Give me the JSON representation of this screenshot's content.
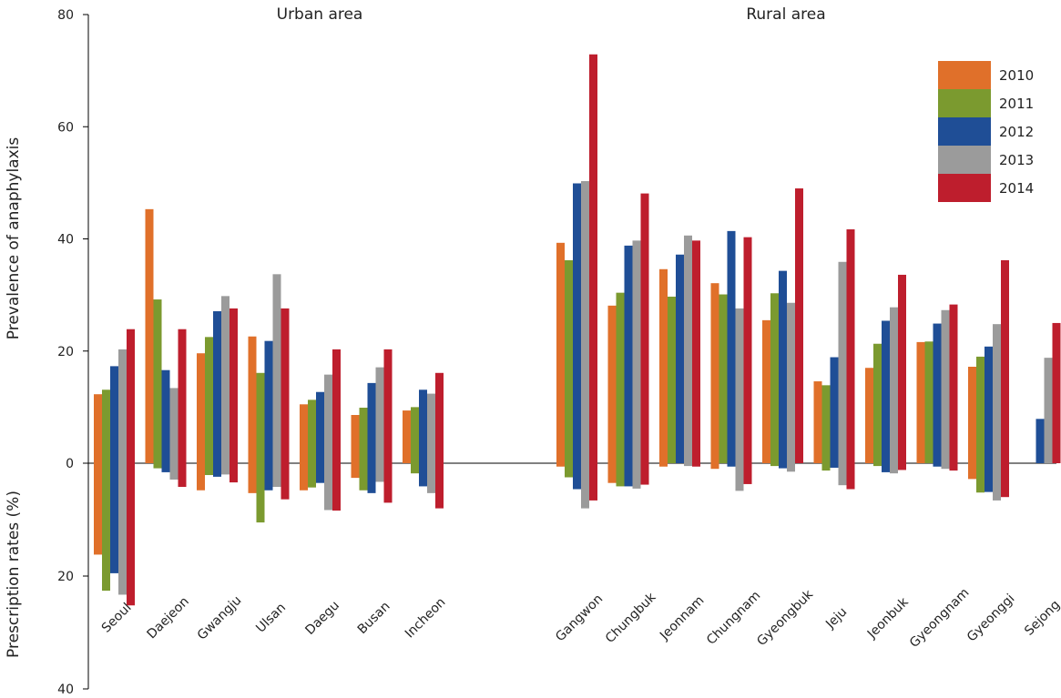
{
  "chart_data": {
    "type": "bar",
    "y_axis_top_label": "Prevalence of anaphylaxis",
    "y_axis_bottom_label": "Prescription rates (%)",
    "y_ticks_top": [
      0,
      20,
      40,
      60,
      80
    ],
    "y_ticks_bottom": [
      20,
      40
    ],
    "ylim_top": [
      0,
      80
    ],
    "ylim_bottom": [
      0,
      40
    ],
    "legend_position": "top-right",
    "groups": [
      {
        "label": "Urban area",
        "categories": [
          "Seoul",
          "Daejeon",
          "Gwangju",
          "Ulsan",
          "Daegu",
          "Busan",
          "Incheon"
        ]
      },
      {
        "label": "Rural area",
        "categories": [
          "Gangwon",
          "Chungbuk",
          "Jeonnam",
          "Chungnam",
          "Gyeongbuk",
          "Jeju",
          "Jeonbuk",
          "Gyeongnam",
          "Gyeonggi",
          "Sejong"
        ]
      }
    ],
    "series": [
      {
        "name": "2010",
        "color": "#E0702A",
        "prevalence": [
          12.3,
          45.3,
          19.6,
          22.6,
          10.5,
          8.6,
          9.4,
          39.3,
          28.1,
          34.6,
          32.1,
          25.5,
          14.6,
          17.0,
          21.6,
          17.2,
          null
        ],
        "prescription": [
          16.2,
          0.0,
          4.8,
          5.3,
          4.8,
          2.6,
          0.0,
          0.6,
          3.5,
          0.6,
          1.0,
          0.0,
          0.0,
          0.0,
          0.0,
          2.8,
          null
        ]
      },
      {
        "name": "2011",
        "color": "#7B9A2F",
        "prevalence": [
          13.1,
          29.2,
          22.5,
          16.1,
          11.3,
          9.9,
          10.0,
          36.2,
          30.4,
          29.7,
          30.1,
          30.3,
          13.9,
          21.3,
          21.7,
          19.0,
          null
        ],
        "prescription": [
          22.6,
          0.9,
          2.1,
          10.5,
          4.3,
          4.8,
          1.8,
          2.5,
          4.1,
          0.0,
          0.0,
          0.5,
          1.3,
          0.5,
          0.0,
          5.2,
          null
        ]
      },
      {
        "name": "2012",
        "color": "#1F4E96",
        "prevalence": [
          17.3,
          16.6,
          27.1,
          21.8,
          12.7,
          14.3,
          13.1,
          49.9,
          38.8,
          37.2,
          41.4,
          34.3,
          18.9,
          25.4,
          24.9,
          20.8,
          7.9
        ],
        "prescription": [
          19.5,
          1.6,
          2.4,
          4.8,
          3.5,
          5.3,
          4.1,
          4.6,
          4.1,
          0.0,
          0.6,
          0.9,
          0.8,
          1.6,
          0.6,
          5.1,
          null
        ]
      },
      {
        "name": "2013",
        "color": "#9B9B9B",
        "prevalence": [
          20.3,
          13.4,
          29.8,
          33.7,
          15.8,
          17.1,
          12.4,
          50.3,
          39.7,
          40.6,
          27.6,
          28.6,
          35.9,
          27.8,
          27.3,
          24.8,
          18.8
        ],
        "prescription": [
          23.3,
          2.9,
          2.0,
          4.2,
          8.3,
          3.3,
          5.3,
          8.0,
          4.5,
          0.5,
          4.9,
          1.5,
          3.9,
          1.8,
          1.0,
          6.6,
          null
        ]
      },
      {
        "name": "2014",
        "color": "#BE1E2D",
        "prevalence": [
          23.9,
          23.9,
          27.6,
          27.6,
          20.3,
          20.3,
          16.1,
          72.9,
          48.1,
          39.7,
          40.3,
          49.0,
          41.7,
          33.6,
          28.3,
          36.2,
          25.0
        ],
        "prescription": [
          25.2,
          4.2,
          3.4,
          6.4,
          8.4,
          7.0,
          8.0,
          6.6,
          3.8,
          0.6,
          3.7,
          0.0,
          4.6,
          1.2,
          1.3,
          6.0,
          null
        ]
      }
    ]
  }
}
